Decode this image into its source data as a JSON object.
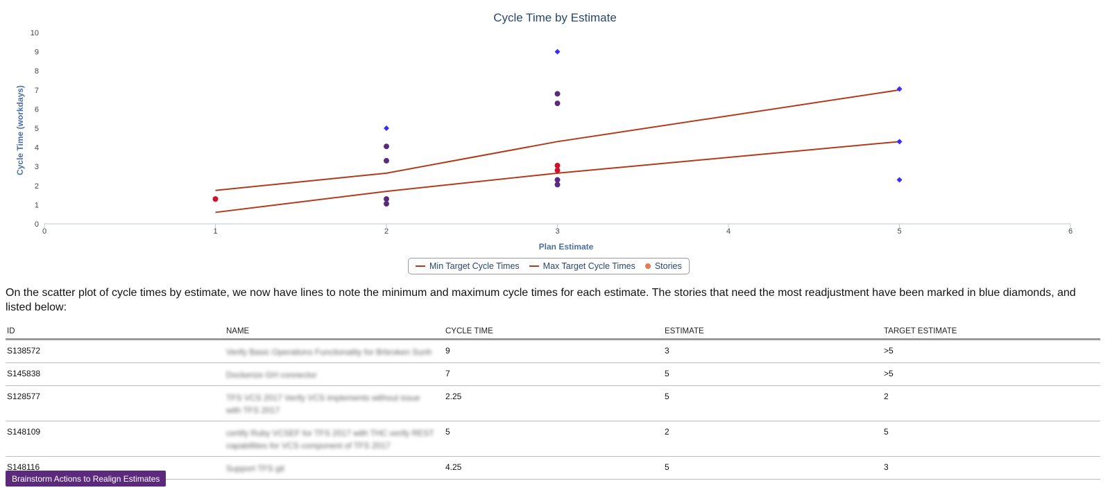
{
  "chart_data": {
    "type": "scatter",
    "title": "Cycle Time by Estimate",
    "xlabel": "Plan Estimate",
    "ylabel": "Cycle Time (workdays)",
    "xlim": [
      0,
      6
    ],
    "ylim": [
      0,
      10
    ],
    "x_ticks": [
      "0",
      "1",
      "2",
      "3",
      "4",
      "5",
      "6"
    ],
    "y_ticks": [
      "0",
      "1",
      "2",
      "3",
      "4",
      "5",
      "6",
      "7",
      "8",
      "9",
      "10"
    ],
    "grid": false,
    "legend_placement": "bottom-center",
    "lines": [
      {
        "name": "Min Target Cycle Times",
        "color": "#b23a1a",
        "x": [
          1,
          2,
          3,
          5
        ],
        "y": [
          0.6,
          1.7,
          2.65,
          4.3
        ]
      },
      {
        "name": "Max Target Cycle Times",
        "color": "#b23a1a",
        "x": [
          1,
          2,
          3,
          5
        ],
        "y": [
          1.75,
          2.65,
          4.3,
          7.0
        ]
      }
    ],
    "stories": {
      "name": "Stories",
      "legend_color": "#e07b54",
      "points": [
        {
          "x": 1,
          "y": 1.3,
          "color": "#d0112b",
          "marker": "circle"
        },
        {
          "x": 2,
          "y": 5,
          "color": "#3a2df5",
          "marker": "diamond"
        },
        {
          "x": 2,
          "y": 4.05,
          "color": "#5b2a7d",
          "marker": "circle"
        },
        {
          "x": 2,
          "y": 3.3,
          "color": "#5b2a7d",
          "marker": "circle"
        },
        {
          "x": 2,
          "y": 1.3,
          "color": "#5b2a7d",
          "marker": "circle"
        },
        {
          "x": 2,
          "y": 1.05,
          "color": "#5b2a7d",
          "marker": "circle"
        },
        {
          "x": 3,
          "y": 9,
          "color": "#3a2df5",
          "marker": "diamond"
        },
        {
          "x": 3,
          "y": 6.8,
          "color": "#5b2a7d",
          "marker": "circle"
        },
        {
          "x": 3,
          "y": 6.3,
          "color": "#5b2a7d",
          "marker": "circle"
        },
        {
          "x": 3,
          "y": 3.05,
          "color": "#d0112b",
          "marker": "circle"
        },
        {
          "x": 3,
          "y": 2.8,
          "color": "#d0112b",
          "marker": "circle"
        },
        {
          "x": 3,
          "y": 2.3,
          "color": "#5b2a7d",
          "marker": "circle"
        },
        {
          "x": 3,
          "y": 2.05,
          "color": "#5b2a7d",
          "marker": "circle"
        },
        {
          "x": 5,
          "y": 7.05,
          "color": "#3a2df5",
          "marker": "diamond"
        },
        {
          "x": 5,
          "y": 4.3,
          "color": "#3a2df5",
          "marker": "diamond"
        },
        {
          "x": 5,
          "y": 2.3,
          "color": "#3a2df5",
          "marker": "diamond"
        }
      ]
    }
  },
  "legend": {
    "min_label": "Min Target Cycle Times",
    "max_label": "Max Target Cycle Times",
    "stories_label": "Stories"
  },
  "description": "On the scatter plot of cycle times by estimate, we now have lines to note the minimum and maximum cycle times for each estimate. The stories that need the most readjustment have been marked in blue diamonds, and listed below:",
  "table": {
    "headers": [
      "ID",
      "NAME",
      "CYCLE TIME",
      "ESTIMATE",
      "TARGET ESTIMATE"
    ],
    "rows": [
      {
        "id": "S138572",
        "cycle_time": "9",
        "estimate": "3",
        "target": ">5"
      },
      {
        "id": "S145838",
        "cycle_time": "7",
        "estimate": "5",
        "target": ">5"
      },
      {
        "id": "S128577",
        "cycle_time": "2.25",
        "estimate": "5",
        "target": "2"
      },
      {
        "id": "S148109",
        "cycle_time": "5",
        "estimate": "2",
        "target": "5"
      },
      {
        "id": "S148116",
        "cycle_time": "4.25",
        "estimate": "5",
        "target": "3"
      }
    ]
  },
  "action_button": "Brainstorm Actions to Realign Estimates"
}
